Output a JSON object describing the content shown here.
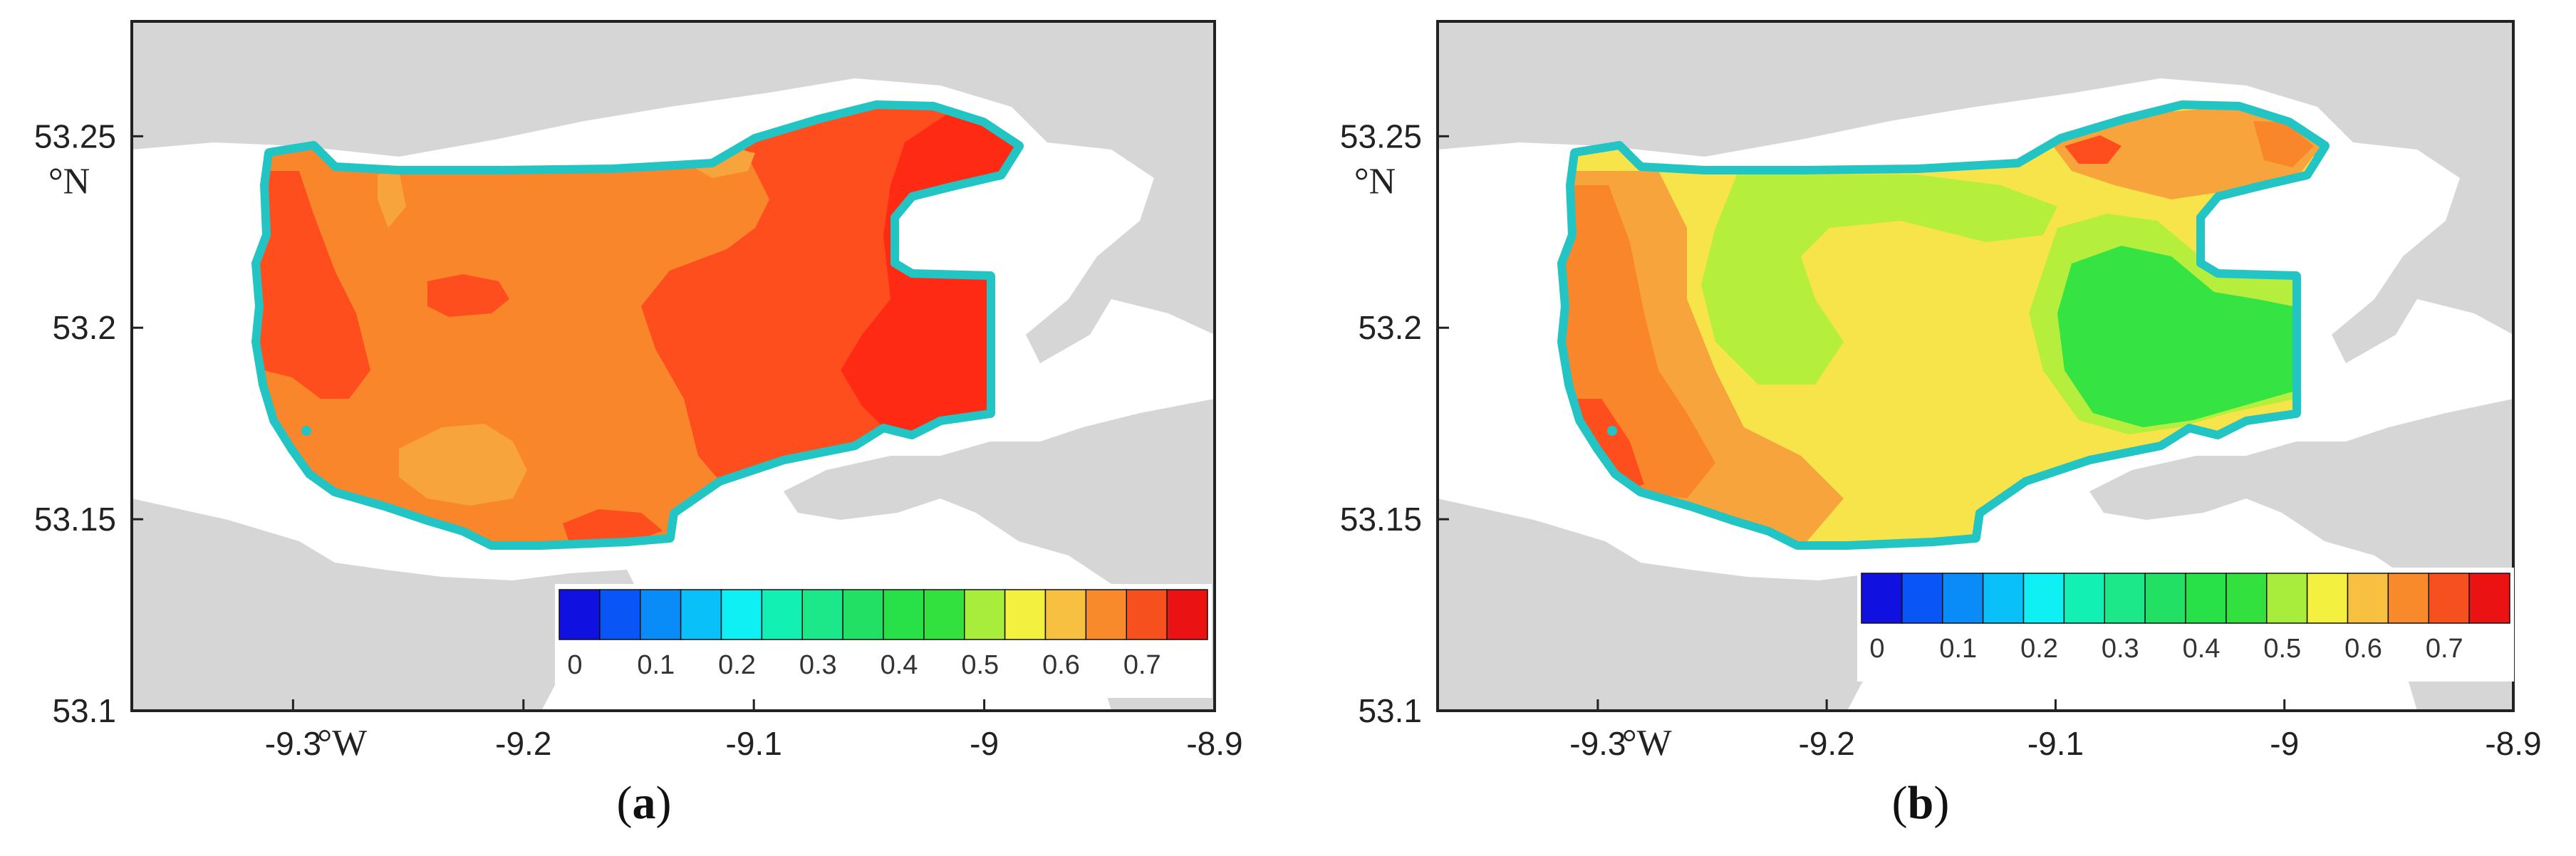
{
  "colors": {
    "land": "#d6d6d6",
    "water_background": "#ffffff",
    "lake_outline": "#22c4c4",
    "zone_red": "#ff2a14",
    "zone_orange_red": "#ff4e1e",
    "zone_orange": "#f9862a",
    "zone_light_orange": "#f8a43c",
    "zone_yellow": "#f7e34a",
    "zone_yellow_green": "#b5ee3c",
    "zone_green": "#35e343"
  },
  "colorbar": {
    "colors": [
      "#1010e0",
      "#0a55f5",
      "#0a8cf8",
      "#0ac0f8",
      "#0ff0f5",
      "#12f0b4",
      "#1ce88a",
      "#22e064",
      "#28e048",
      "#32e13e",
      "#a8ec3c",
      "#f4f040",
      "#f8c040",
      "#f88a2c",
      "#f6501e",
      "#ea1212"
    ],
    "tick_labels": [
      "0",
      "0.1",
      "0.2",
      "0.3",
      "0.4",
      "0.5",
      "0.6",
      "0.7"
    ]
  },
  "axes": {
    "x_ticks": [
      -9.3,
      -9.2,
      -9.1,
      -9.0,
      -8.9
    ],
    "x_tick_labels": [
      "-9.3",
      "-9.2",
      "-9.1",
      "-9",
      "-8.9"
    ],
    "x_unit": "°W",
    "y_ticks": [
      53.1,
      53.15,
      53.2,
      53.25
    ],
    "y_tick_labels": [
      "53.1",
      "53.15",
      "53.2",
      "53.25"
    ],
    "y_unit": "°N",
    "x_range": [
      -9.37,
      -8.9
    ],
    "y_range": [
      53.1,
      53.28
    ]
  },
  "panels": [
    {
      "id": "a",
      "caption_open": "(",
      "caption_letter": "a",
      "caption_close": ")",
      "dominant_fill": "zone_orange",
      "zones": [
        "zone_orange_red",
        "zone_red",
        "zone_light_orange"
      ]
    },
    {
      "id": "b",
      "caption_open": "(",
      "caption_letter": "b",
      "caption_close": ")",
      "dominant_fill": "zone_yellow",
      "zones": [
        "zone_orange",
        "zone_orange_red",
        "zone_light_orange",
        "zone_yellow_green",
        "zone_green"
      ]
    }
  ]
}
